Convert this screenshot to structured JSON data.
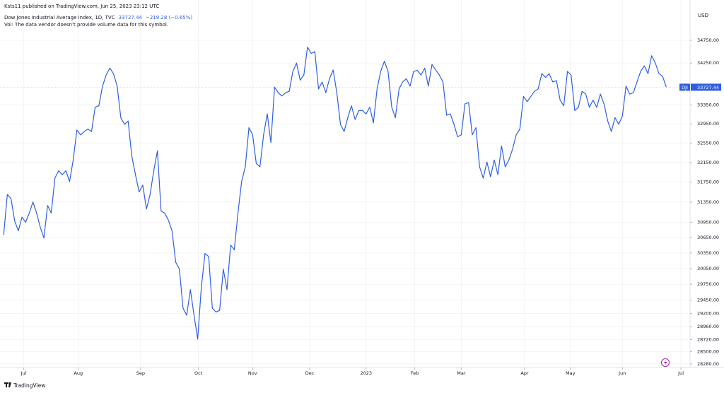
{
  "chart_data": {
    "type": "line",
    "attribution": "Ksts11 published on TradingView.com, Jun 25, 2023 23:12 UTC",
    "title": "Dow Jones Industrial Average Index, 1D, TVC",
    "change": "−219.28 (−0.65%)",
    "volume_note": "Vol: The data vendor doesn't provide volume data for this symbol.",
    "currency": "USD",
    "brand": "TradingView",
    "log_scale": true,
    "grid": true,
    "xlim": [
      -1,
      187.3
    ],
    "xticks": [
      {
        "value": 5.5,
        "label": "Jul"
      },
      {
        "value": 20.4,
        "label": "Aug"
      },
      {
        "value": 37.4,
        "label": "Sep"
      },
      {
        "value": 53.2,
        "label": "Oct"
      },
      {
        "value": 68,
        "label": "Nov"
      },
      {
        "value": 83.6,
        "label": "Dec"
      },
      {
        "value": 99,
        "label": "2023"
      },
      {
        "value": 112.3,
        "label": "Feb"
      },
      {
        "value": 125,
        "label": "Mar"
      },
      {
        "value": 142.3,
        "label": "Apr"
      },
      {
        "value": 154.8,
        "label": "May"
      },
      {
        "value": 169,
        "label": "Jun"
      },
      {
        "value": 185,
        "label": "Jul"
      }
    ],
    "ylim": [
      28214,
      35653
    ],
    "yticks": [
      {
        "value": 34750,
        "label": "34750.00"
      },
      {
        "value": 34250,
        "label": "34250.00"
      },
      {
        "value": 33350,
        "label": "33350.00"
      },
      {
        "value": 32950,
        "label": "32950.00"
      },
      {
        "value": 32550,
        "label": "32550.00"
      },
      {
        "value": 32150,
        "label": "32150.00"
      },
      {
        "value": 31750,
        "label": "31750.00"
      },
      {
        "value": 31350,
        "label": "31350.00"
      },
      {
        "value": 30950,
        "label": "30950.00"
      },
      {
        "value": 30650,
        "label": "30650.00"
      },
      {
        "value": 30350,
        "label": "30350.00"
      },
      {
        "value": 30050,
        "label": "30050.00"
      },
      {
        "value": 29750,
        "label": "29750.00"
      },
      {
        "value": 29450,
        "label": "29450.00"
      },
      {
        "value": 29200,
        "label": "29200.00"
      },
      {
        "value": 28960,
        "label": "28960.00"
      },
      {
        "value": 28720,
        "label": "28720.00"
      },
      {
        "value": 28500,
        "label": "28500.00"
      },
      {
        "value": 28280,
        "label": "28280.00"
      }
    ],
    "series": [
      {
        "name": "DJI",
        "color": "#2f5fe0",
        "values": [
          30700,
          31500,
          31420,
          30980,
          30780,
          31050,
          30950,
          31130,
          31350,
          31130,
          30850,
          30640,
          31280,
          31130,
          31830,
          31980,
          31900,
          31980,
          31760,
          32200,
          32820,
          32720,
          32790,
          32840,
          32790,
          33300,
          33330,
          33750,
          33990,
          34140,
          34020,
          33750,
          33080,
          32940,
          33010,
          32280,
          31900,
          31550,
          31690,
          31210,
          31500,
          31980,
          32390,
          31170,
          31130,
          30990,
          30780,
          30170,
          30040,
          29300,
          29170,
          29650,
          29170,
          28730,
          29700,
          30340,
          30280,
          29300,
          29230,
          29260,
          30040,
          29650,
          30500,
          30410,
          31130,
          31760,
          32060,
          32870,
          32720,
          32130,
          32060,
          32720,
          33160,
          32560,
          33730,
          33610,
          33540,
          33610,
          33640,
          34070,
          34250,
          33880,
          33990,
          34600,
          34460,
          34500,
          33690,
          33840,
          33610,
          33910,
          34100,
          33610,
          32940,
          32790,
          33080,
          33330,
          33040,
          33230,
          33230,
          33160,
          33300,
          32970,
          33690,
          34070,
          34290,
          34070,
          33300,
          33080,
          33690,
          33840,
          33910,
          33750,
          34070,
          34090,
          33990,
          34140,
          33750,
          34220,
          34100,
          33990,
          33840,
          33130,
          33160,
          32940,
          32680,
          32720,
          33370,
          33400,
          32720,
          32870,
          32060,
          31830,
          32160,
          31860,
          32200,
          31900,
          32490,
          32060,
          32200,
          32420,
          32720,
          32840,
          33530,
          33420,
          33530,
          33640,
          33690,
          34020,
          33940,
          34020,
          33840,
          33870,
          33450,
          33330,
          34070,
          33990,
          33230,
          33300,
          33640,
          33580,
          33300,
          33450,
          33300,
          33580,
          33370,
          33010,
          32790,
          33080,
          32940,
          33110,
          33750,
          33580,
          33610,
          33840,
          34070,
          34190,
          34020,
          34410,
          34250,
          34020,
          33960,
          33727.44
        ]
      }
    ]
  }
}
